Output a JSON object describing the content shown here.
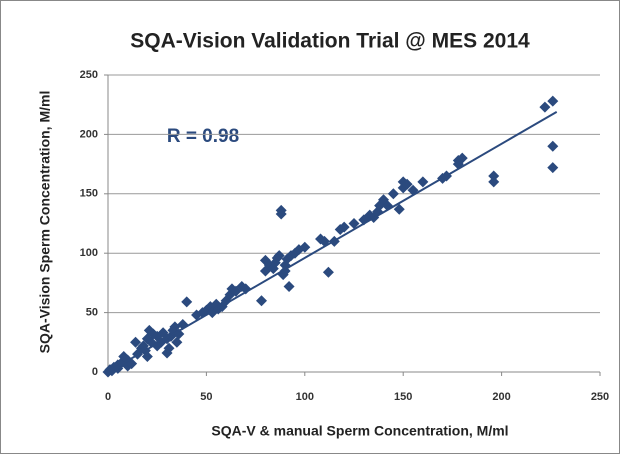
{
  "chart_data": {
    "type": "scatter",
    "title": "SQA-Vision Validation Trial @ MES 2014",
    "x_label": "SQA-V  & manual Sperm Concentration, M/ml",
    "y_label": "SQA-Vision Sperm Concentration, M/ml",
    "annotation": "R = 0.98",
    "color": "#2b4a7e",
    "grid": true,
    "xlim": [
      0,
      250
    ],
    "xticks": [
      0,
      50,
      100,
      150,
      200,
      250
    ],
    "ylim": [
      0,
      250
    ],
    "yticks": [
      0,
      50,
      100,
      150,
      200,
      250
    ],
    "trendline": {
      "x": [
        0,
        228
      ],
      "y": [
        0,
        219
      ]
    },
    "x": [
      0,
      1,
      2,
      3,
      5,
      5,
      7,
      8,
      10,
      10,
      12,
      14,
      15,
      17,
      18,
      19,
      20,
      20,
      21,
      22,
      23,
      25,
      25,
      27,
      28,
      30,
      30,
      31,
      32,
      33,
      34,
      35,
      36,
      38,
      40,
      45,
      48,
      50,
      52,
      53,
      55,
      56,
      58,
      60,
      62,
      63,
      65,
      68,
      70,
      78,
      80,
      80,
      82,
      84,
      85,
      86,
      87,
      88,
      88,
      89,
      90,
      90,
      91,
      92,
      93,
      95,
      97,
      100,
      108,
      110,
      112,
      115,
      118,
      120,
      125,
      130,
      133,
      135,
      137,
      138,
      140,
      142,
      145,
      148,
      150,
      150,
      152,
      155,
      160,
      170,
      172,
      178,
      180,
      178,
      196,
      196,
      222,
      226,
      226,
      226
    ],
    "y": [
      0,
      2,
      1,
      4,
      3,
      6,
      8,
      13,
      10,
      5,
      7,
      25,
      15,
      20,
      22,
      18,
      13,
      28,
      35,
      25,
      32,
      22,
      30,
      25,
      33,
      28,
      16,
      20,
      30,
      35,
      38,
      25,
      32,
      40,
      59,
      48,
      50,
      52,
      55,
      50,
      57,
      53,
      55,
      60,
      65,
      70,
      68,
      72,
      70,
      60,
      85,
      94,
      90,
      87,
      92,
      96,
      98,
      133,
      136,
      82,
      85,
      90,
      95,
      72,
      98,
      100,
      103,
      105,
      112,
      110,
      84,
      110,
      120,
      122,
      125,
      128,
      132,
      130,
      135,
      140,
      145,
      140,
      150,
      137,
      155,
      160,
      158,
      153,
      160,
      163,
      165,
      178,
      180,
      175,
      165,
      160,
      223,
      228,
      190,
      172
    ]
  }
}
